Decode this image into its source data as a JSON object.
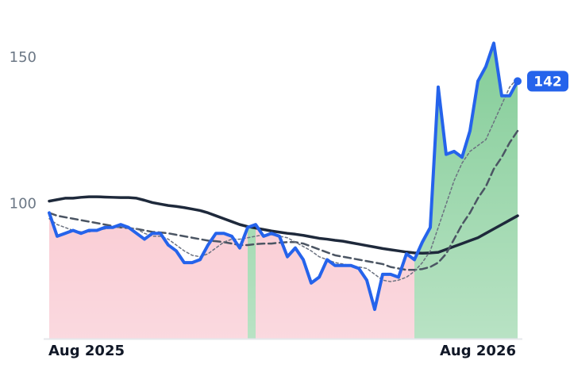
{
  "chart_data": {
    "type": "line",
    "categories": [
      "Aug 2025",
      null,
      null,
      null,
      null,
      null,
      null,
      null,
      null,
      null,
      null,
      null,
      null,
      null,
      null,
      null,
      null,
      null,
      null,
      null,
      null,
      null,
      null,
      null,
      null,
      null,
      null,
      null,
      null,
      null,
      null,
      null,
      null,
      null,
      null,
      null,
      null,
      null,
      null,
      null,
      null,
      null,
      null,
      null,
      null,
      null,
      null,
      null,
      null,
      null,
      null,
      null,
      null,
      null,
      "Aug 2026",
      null,
      null,
      null,
      null,
      null
    ],
    "series": [
      {
        "color": "#2563eb",
        "style": "solid",
        "width": 4,
        "values": [
          97,
          89,
          90,
          91,
          90,
          91,
          91,
          92,
          92,
          93,
          92,
          90,
          88,
          90,
          90,
          86,
          84,
          80,
          80,
          81,
          86,
          90,
          90,
          89,
          85,
          92,
          93,
          89,
          90,
          89,
          82,
          85,
          81,
          73,
          75,
          81,
          79,
          79,
          79,
          78,
          74,
          64,
          76,
          76,
          75,
          83,
          81,
          87,
          92,
          140,
          117,
          118,
          116,
          125,
          142,
          147,
          155,
          137,
          137,
          142
        ]
      },
      {
        "color": "#1e293b",
        "style": "solid",
        "width": 3.5,
        "values": [
          101,
          101.5,
          102,
          102,
          102.3,
          102.5,
          102.5,
          102.4,
          102.3,
          102.2,
          102.2,
          102,
          101.3,
          100.5,
          100,
          99.5,
          99.2,
          98.8,
          98.3,
          97.8,
          97,
          96,
          95,
          94,
          93,
          92.3,
          91.8,
          91.3,
          90.8,
          90.4,
          90,
          89.7,
          89.3,
          88.8,
          88.3,
          88,
          87.6,
          87.3,
          86.8,
          86.3,
          85.8,
          85.3,
          84.8,
          84.4,
          84,
          83.6,
          83.3,
          83.2,
          83.3,
          83.5,
          84.5,
          85.5,
          86.5,
          87.5,
          88.5,
          90,
          91.5,
          93,
          94.5,
          96
        ]
      },
      {
        "color": "#4b5563",
        "style": "dashed",
        "width": 2.5,
        "values": [
          97,
          96,
          95.5,
          95,
          94.5,
          94,
          93.5,
          93,
          92.5,
          92,
          91.8,
          91.5,
          91,
          90.5,
          90.3,
          90,
          89.5,
          89,
          88.5,
          88,
          87.5,
          87.3,
          87,
          86.5,
          86,
          86,
          86.3,
          86.5,
          86.5,
          86.8,
          87,
          87,
          86.5,
          85.5,
          84.5,
          83.5,
          82.5,
          82,
          81.5,
          81,
          80.5,
          80,
          79.5,
          78.5,
          78,
          77.5,
          77.5,
          77.8,
          78.5,
          80,
          83,
          88,
          93,
          97,
          102,
          106,
          112,
          116,
          121,
          125
        ]
      },
      {
        "color": "#6b7280",
        "style": "dotted",
        "width": 1.5,
        "values": [
          95,
          93,
          92,
          91,
          90.5,
          90.5,
          91,
          91.5,
          92,
          92,
          92,
          91.5,
          90,
          89,
          89,
          88,
          86,
          84,
          82.5,
          82,
          83,
          85,
          87,
          88,
          88,
          88.5,
          89,
          89.5,
          89.5,
          89,
          88.5,
          87,
          85.5,
          84,
          82,
          81,
          80,
          79.5,
          79,
          78.5,
          78,
          76,
          74,
          73.5,
          74,
          75,
          77,
          80,
          84,
          92,
          100,
          108,
          114,
          118,
          120,
          122,
          128,
          134,
          140,
          143
        ]
      }
    ],
    "area_colors": {
      "above": "#7fcb94",
      "below": "#f7bac5"
    },
    "ylim": [
      54,
      165
    ],
    "yticks": [
      100,
      150
    ]
  }
}
